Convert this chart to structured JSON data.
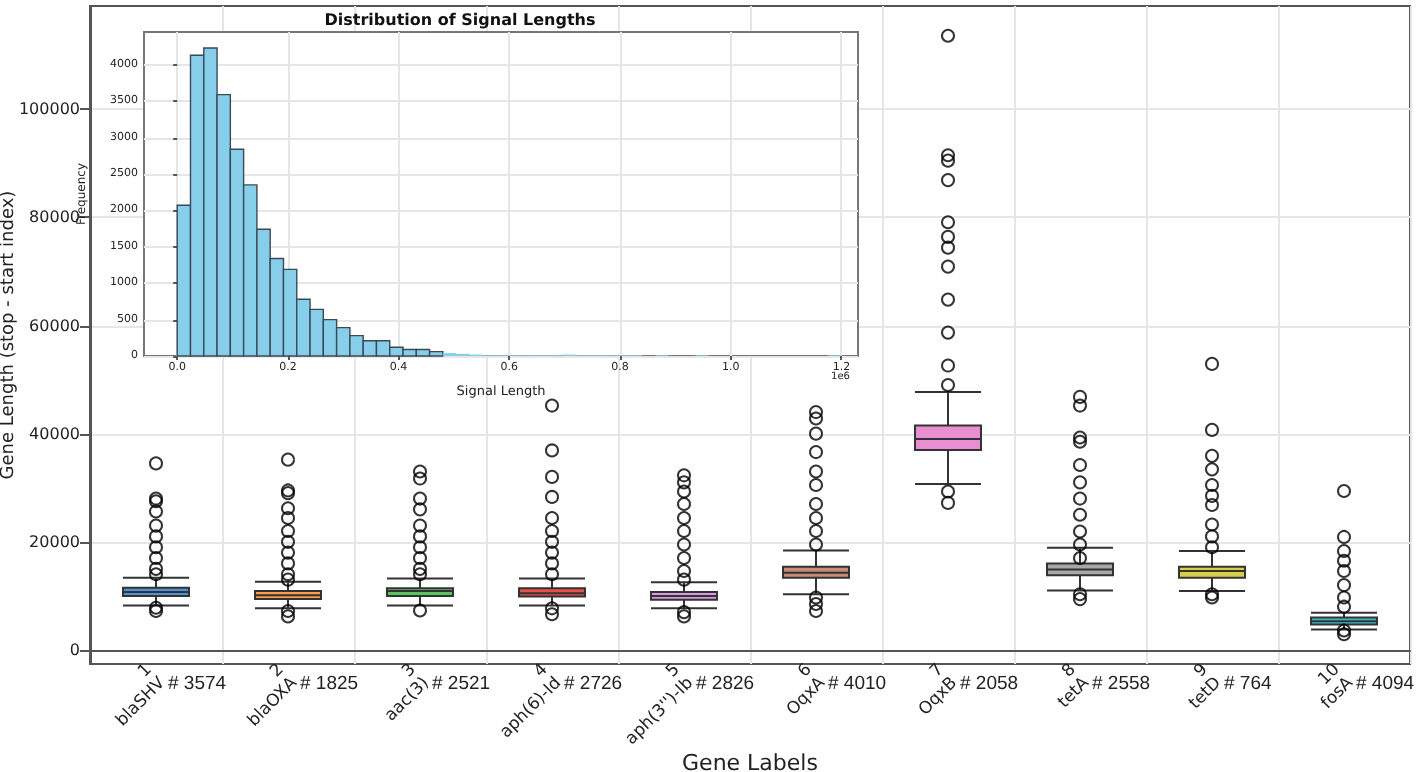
{
  "chart_data": [
    {
      "type": "box",
      "xlabel": "Gene Labels",
      "ylabel": "Gene Length (stop - start index)",
      "categories": [
        "1\nblaSHV",
        "2\nblaOXA",
        "3\naac(3)",
        "4\naph(6)-Id",
        "5\naph(3'')-Ib",
        "6\nOqxA",
        "7\nOqxB",
        "8\ntetA",
        "9\ntetD",
        "10\nfosA"
      ],
      "colors": [
        "#4f93d6",
        "#ff9d4d",
        "#5cc45c",
        "#e8504c",
        "#d59ae0",
        "#c98a78",
        "#e88fd3",
        "#a8a8a8",
        "#d8cf4a",
        "#3fb8c8"
      ],
      "boxes": [
        {
          "low": 8200,
          "q1": 10000,
          "median": 10700,
          "q3": 11500,
          "high": 13350,
          "outliers": [
            34500,
            28000,
            27500,
            25600,
            23000,
            21000,
            19000,
            17000,
            15000,
            14000,
            7800,
            7200
          ]
        },
        {
          "low": 7700,
          "q1": 9400,
          "median": 10100,
          "q3": 10900,
          "high": 12600,
          "outliers": [
            35200,
            29500,
            29000,
            26200,
            24400,
            22000,
            20000,
            18000,
            16000,
            14000,
            13000,
            7200,
            6200
          ]
        },
        {
          "low": 8200,
          "q1": 10000,
          "median": 10900,
          "q3": 11400,
          "high": 13200,
          "outliers": [
            33000,
            31700,
            28000,
            26000,
            23000,
            21000,
            19000,
            17000,
            15000,
            14000,
            7300
          ]
        },
        {
          "low": 8200,
          "q1": 9900,
          "median": 10500,
          "q3": 11400,
          "high": 13200,
          "outliers": [
            45200,
            36900,
            32000,
            28300,
            24400,
            22000,
            20000,
            18000,
            16000,
            14000,
            7700,
            6600
          ]
        },
        {
          "low": 7700,
          "q1": 9300,
          "median": 10000,
          "q3": 10700,
          "high": 12500,
          "outliers": [
            32300,
            31000,
            29300,
            27000,
            24400,
            22000,
            19500,
            17000,
            14600,
            13000,
            7000,
            6200
          ]
        },
        {
          "low": 10300,
          "q1": 13350,
          "median": 14300,
          "q3": 15400,
          "high": 18400,
          "outliers": [
            44000,
            42800,
            40000,
            36600,
            33000,
            30500,
            27000,
            24400,
            22000,
            19500,
            9700,
            8500,
            7200
          ]
        },
        {
          "low": 30700,
          "q1": 37000,
          "median": 39000,
          "q3": 41500,
          "high": 47700,
          "outliers": [
            113600,
            91500,
            90500,
            86900,
            79100,
            76400,
            74400,
            70900,
            64800,
            58700,
            52600,
            49000,
            29300,
            27200
          ]
        },
        {
          "low": 11000,
          "q1": 13800,
          "median": 14900,
          "q3": 16000,
          "high": 18900,
          "outliers": [
            46800,
            45200,
            39300,
            38500,
            34200,
            31000,
            28000,
            25000,
            21900,
            19500,
            17000,
            10300,
            9400
          ]
        },
        {
          "low": 10900,
          "q1": 13350,
          "median": 14600,
          "q3": 15400,
          "high": 18300,
          "outliers": [
            52900,
            40700,
            35900,
            33400,
            30500,
            28500,
            26800,
            23200,
            21000,
            19000,
            10300,
            9700
          ]
        },
        {
          "low": 3800,
          "q1": 4700,
          "median": 5300,
          "q3": 6000,
          "high": 6900,
          "outliers": [
            29400,
            20900,
            18300,
            16500,
            14600,
            12000,
            9700,
            8000,
            3600,
            2900
          ]
        }
      ],
      "ylim": [
        -2600,
        119100
      ],
      "yticks": [
        0,
        20000,
        40000,
        60000,
        80000,
        100000
      ],
      "grid": true,
      "marker": "circle",
      "annotations": [
        "# 3574",
        "# 1825",
        "# 2521",
        "# 2726",
        "# 2826",
        "# 4010",
        "# 2058",
        "# 2558",
        "# 764",
        "# 4094"
      ]
    },
    {
      "type": "histogram",
      "title": "Distribution of Signal Lengths",
      "xlabel": "Signal Length",
      "ylabel": "Frequency",
      "color": "#87ceeb",
      "bins": [
        0,
        0.024,
        0.048,
        0.072,
        0.096,
        0.12,
        0.144,
        0.168,
        0.192,
        0.216,
        0.24,
        0.264,
        0.288,
        0.312,
        0.336,
        0.36,
        0.384,
        0.408,
        0.432,
        0.456,
        0.48,
        0.504,
        0.528,
        0.552,
        0.576,
        0.6,
        0.624,
        0.648,
        0.672,
        0.696,
        0.72,
        0.744,
        0.768,
        0.792,
        0.816,
        0.84,
        0.864,
        0.888,
        0.912,
        0.936,
        0.96,
        0.984,
        1.008,
        1.032,
        1.056,
        1.08,
        1.104,
        1.128,
        1.152,
        1.176,
        1.2
      ],
      "values": [
        2070,
        4130,
        4230,
        3590,
        2840,
        2350,
        1740,
        1340,
        1190,
        780,
        640,
        500,
        390,
        280,
        210,
        210,
        120,
        90,
        90,
        60,
        40,
        30,
        20,
        10,
        10,
        10,
        10,
        10,
        10,
        20,
        10,
        10,
        10,
        10,
        10,
        0,
        10,
        0,
        0,
        10,
        0,
        0,
        0,
        0,
        0,
        0,
        0,
        0,
        0,
        10
      ],
      "xlim": [
        -0.06,
        1.23
      ],
      "xticks": [
        {
          "value": 0,
          "label": "0.0"
        },
        0.2,
        0.4,
        0.6,
        0.8,
        {
          "value": 1,
          "label": "1.0"
        },
        {
          "value": 1.2,
          "label": "1.2"
        }
      ],
      "ylim": [
        0,
        4450
      ],
      "yticks": [
        0,
        500,
        1000,
        1500,
        2000,
        2500,
        3000,
        3500,
        4000
      ],
      "grid": true,
      "annotations": [
        "1e6"
      ]
    }
  ]
}
